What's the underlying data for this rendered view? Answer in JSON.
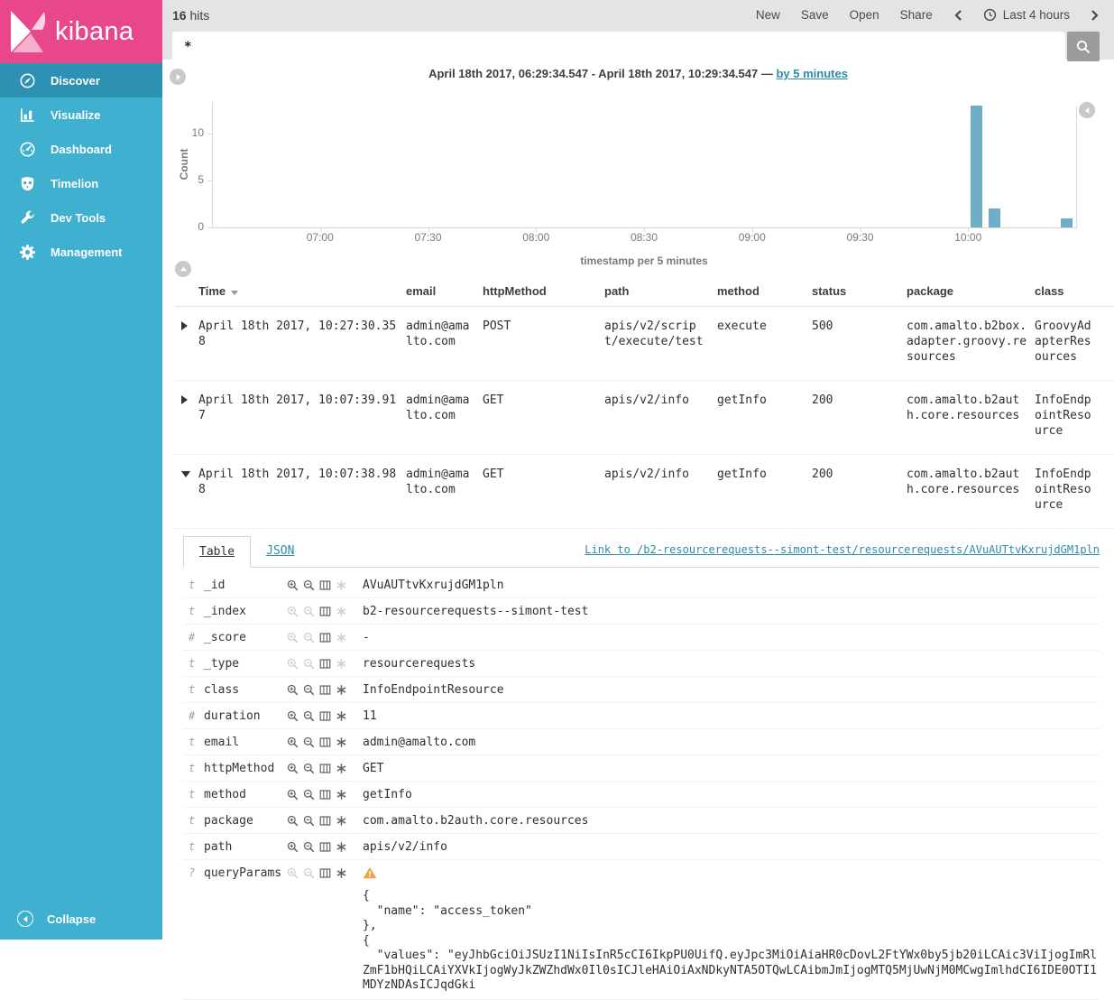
{
  "colors": {
    "brand_pink": "#E8488B",
    "sidebar_teal": "#3FB0CF",
    "sidebar_active": "#2D91B3",
    "link_teal": "#2D8CA8",
    "histogram_bar": "#6EAEC6",
    "topbar_gray": "#E4E4E4",
    "warning_orange": "#F0A33F"
  },
  "sidebar": {
    "logo_text": "kibana",
    "items": [
      {
        "label": "Discover",
        "icon": "compass",
        "active": true
      },
      {
        "label": "Visualize",
        "icon": "bar-chart",
        "active": false
      },
      {
        "label": "Dashboard",
        "icon": "dashboard",
        "active": false
      },
      {
        "label": "Timelion",
        "icon": "timelion",
        "active": false
      },
      {
        "label": "Dev Tools",
        "icon": "wrench",
        "active": false
      },
      {
        "label": "Management",
        "icon": "gear",
        "active": false
      }
    ],
    "collapse_label": "Collapse"
  },
  "topbar": {
    "hits_value": "16",
    "hits_label": "hits",
    "nav_items": [
      "New",
      "Save",
      "Open",
      "Share"
    ],
    "timepicker_label": "Last 4 hours"
  },
  "search": {
    "value": "*"
  },
  "time_header": {
    "range_text": "April 18th 2017, 06:29:34.547 - April 18th 2017, 10:29:34.547 —",
    "interval_link": "by 5 minutes"
  },
  "chart_data": {
    "type": "bar",
    "title": "",
    "ylabel": "Count",
    "xlabel": "timestamp per 5 minutes",
    "bucket_minutes": 5,
    "x_range": [
      "06:30",
      "10:30"
    ],
    "x_ticks": [
      "07:00",
      "07:30",
      "08:00",
      "08:30",
      "09:00",
      "09:30",
      "10:00"
    ],
    "y_ticks": [
      "0",
      "5",
      "10"
    ],
    "ylim": [
      0,
      13
    ],
    "bars": [
      {
        "time": "10:00",
        "count": 13
      },
      {
        "time": "10:05",
        "count": 2
      },
      {
        "time": "10:25",
        "count": 1
      }
    ],
    "bar_color": "#6EAEC6",
    "grid": false,
    "legend": false
  },
  "doc_table": {
    "columns": [
      "Time",
      "email",
      "httpMethod",
      "path",
      "method",
      "status",
      "package",
      "class"
    ],
    "rows": [
      {
        "expanded": false,
        "time": "April 18th 2017, 10:27:30.358",
        "email": "admin@amalto.com",
        "httpMethod": "POST",
        "path": "apis/v2/script/execute/test",
        "method": "execute",
        "status": "500",
        "package": "com.amalto.b2box.adapter.groovy.resources",
        "class": "GroovyAdapterResources"
      },
      {
        "expanded": false,
        "time": "April 18th 2017, 10:07:39.917",
        "email": "admin@amalto.com",
        "httpMethod": "GET",
        "path": "apis/v2/info",
        "method": "getInfo",
        "status": "200",
        "package": "com.amalto.b2auth.core.resources",
        "class": "InfoEndpointResource"
      },
      {
        "expanded": true,
        "time": "April 18th 2017, 10:07:38.988",
        "email": "admin@amalto.com",
        "httpMethod": "GET",
        "path": "apis/v2/info",
        "method": "getInfo",
        "status": "200",
        "package": "com.amalto.b2auth.core.resources",
        "class": "InfoEndpointResource"
      }
    ]
  },
  "detail": {
    "tabs": [
      {
        "label": "Table",
        "active": true
      },
      {
        "label": "JSON",
        "active": false
      }
    ],
    "doc_link": "Link to /b2-resourcerequests--simont-test/resourcerequests/AVuAUTtvKxrujdGM1pln",
    "fields": [
      {
        "type": "t",
        "name": "_id",
        "value": "AVuAUTtvKxrujdGM1pln",
        "filters_enabled": true,
        "star_enabled": false,
        "warning": false
      },
      {
        "type": "t",
        "name": "_index",
        "value": "b2-resourcerequests--simont-test",
        "filters_enabled": false,
        "star_enabled": false,
        "warning": false
      },
      {
        "type": "#",
        "name": "_score",
        "value": "-",
        "filters_enabled": false,
        "star_enabled": false,
        "warning": false
      },
      {
        "type": "t",
        "name": "_type",
        "value": "resourcerequests",
        "filters_enabled": false,
        "star_enabled": false,
        "warning": false
      },
      {
        "type": "t",
        "name": "class",
        "value": "InfoEndpointResource",
        "filters_enabled": true,
        "star_enabled": true,
        "warning": false
      },
      {
        "type": "#",
        "name": "duration",
        "value": "11",
        "filters_enabled": true,
        "star_enabled": true,
        "warning": false
      },
      {
        "type": "t",
        "name": "email",
        "value": "admin@amalto.com",
        "filters_enabled": true,
        "star_enabled": true,
        "warning": false
      },
      {
        "type": "t",
        "name": "httpMethod",
        "value": "GET",
        "filters_enabled": true,
        "star_enabled": true,
        "warning": false
      },
      {
        "type": "t",
        "name": "method",
        "value": "getInfo",
        "filters_enabled": true,
        "star_enabled": true,
        "warning": false
      },
      {
        "type": "t",
        "name": "package",
        "value": "com.amalto.b2auth.core.resources",
        "filters_enabled": true,
        "star_enabled": true,
        "warning": false
      },
      {
        "type": "t",
        "name": "path",
        "value": "apis/v2/info",
        "filters_enabled": true,
        "star_enabled": true,
        "warning": false
      },
      {
        "type": "?",
        "name": "queryParams",
        "value": "{\n  \"name\": \"access_token\"\n},\n{\n  \"values\": \"eyJhbGciOiJSUzI1NiIsInR5cCI6IkpPU0UifQ.eyJpc3MiOiAiaHR0cDovL2FtYWx0by5jb20iLCAic3ViIjogImRlZmF1bHQiLCAiYXVkIjogWyJkZWZhdWx0Il0sICJleHAiOiAxNDkyNTA5OTQwLCAibmJmIjogMTQ5MjUwNjM0MCwgImlhdCI6IDE0OTI1MDYzNDAsICJqdGki",
        "filters_enabled": false,
        "star_enabled": true,
        "warning": true
      }
    ]
  }
}
